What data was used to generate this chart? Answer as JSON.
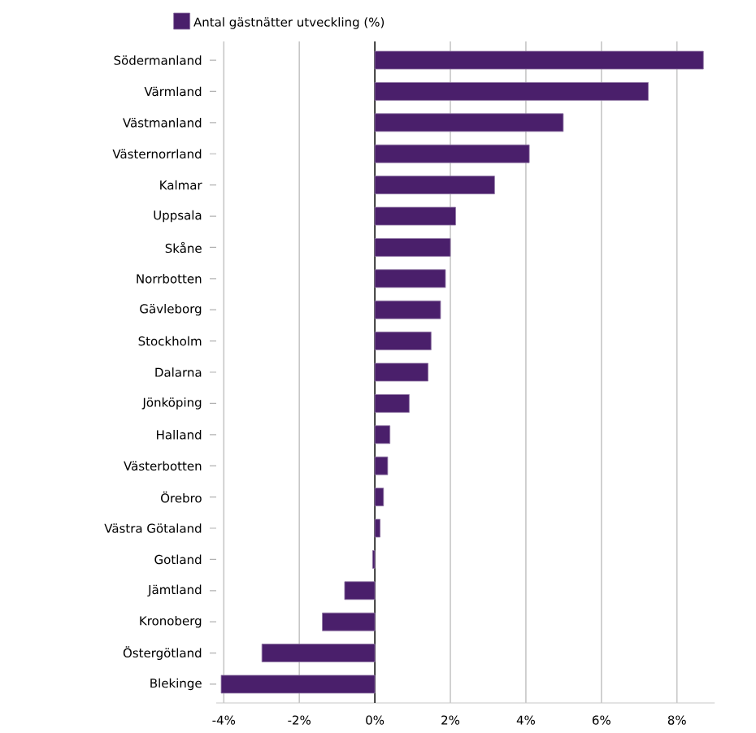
{
  "chart_data": {
    "type": "bar",
    "orientation": "horizontal",
    "categories": [
      "Södermanland",
      "Värmland",
      "Västmanland",
      "Västernorrland",
      "Kalmar",
      "Uppsala",
      "Skåne",
      "Norrbotten",
      "Gävleborg",
      "Stockholm",
      "Dalarna",
      "Jönköping",
      "Halland",
      "Västerbotten",
      "Örebro",
      "Västra Götaland",
      "Gotland",
      "Jämtland",
      "Kronoberg",
      "Östergötland",
      "Blekinge"
    ],
    "series": [
      {
        "name": "Antal gästnätter utveckling (%)",
        "color": "#4a1f6b",
        "values": [
          8.7,
          7.24,
          4.99,
          4.09,
          3.17,
          2.14,
          2.0,
          1.87,
          1.74,
          1.49,
          1.41,
          0.91,
          0.4,
          0.34,
          0.23,
          0.14,
          -0.06,
          -0.8,
          -1.39,
          -2.99,
          -4.07
        ]
      }
    ],
    "xlim": [
      -4.2,
      9.0
    ],
    "xticks": [
      {
        "value": -4,
        "label": "-4%"
      },
      {
        "value": -2,
        "label": "-2%"
      },
      {
        "value": 0,
        "label": "0%"
      },
      {
        "value": 2,
        "label": "2%"
      },
      {
        "value": 4,
        "label": "4%"
      },
      {
        "value": 6,
        "label": "6%"
      },
      {
        "value": 8,
        "label": "8%"
      }
    ],
    "grid": "x",
    "legend": "top"
  }
}
